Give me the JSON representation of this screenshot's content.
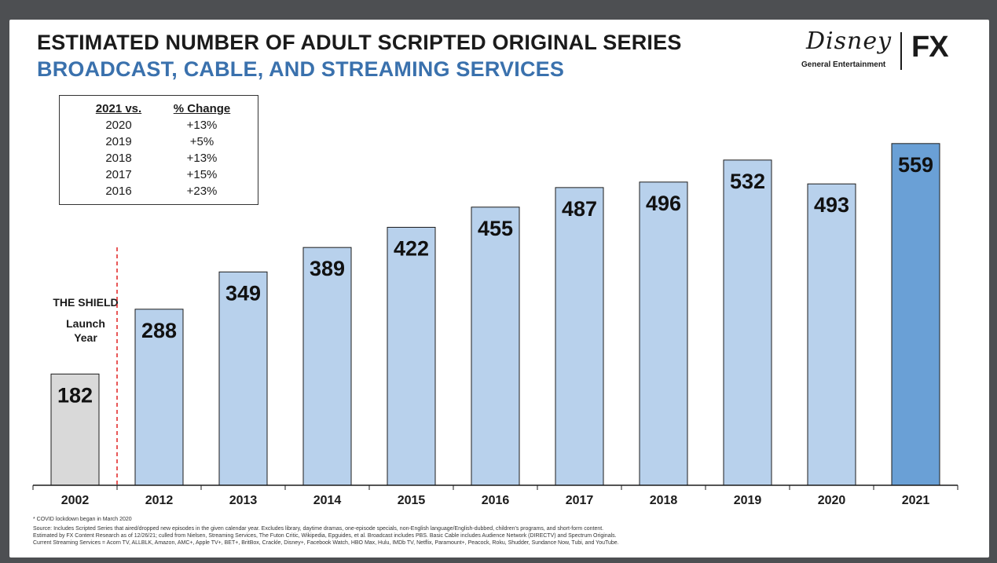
{
  "header": {
    "title": "ESTIMATED NUMBER OF ADULT SCRIPTED ORIGINAL SERIES",
    "subtitle": "BROADCAST, CABLE, AND STREAMING SERVICES"
  },
  "logos": {
    "disney": "Disney",
    "disney_sub": "General Entertainment",
    "fx": "FX"
  },
  "change_table": {
    "col1": "2021 vs.",
    "col2": "% Change",
    "rows": [
      {
        "year": "2020",
        "change": "+13%"
      },
      {
        "year": "2019",
        "change": "+5%"
      },
      {
        "year": "2018",
        "change": "+13%"
      },
      {
        "year": "2017",
        "change": "+15%"
      },
      {
        "year": "2016",
        "change": "+23%"
      }
    ]
  },
  "annotation": {
    "line1": "THE SHIELD",
    "line2": "Launch",
    "line3": "Year"
  },
  "chart_data": {
    "type": "bar",
    "title": "ESTIMATED NUMBER OF ADULT SCRIPTED ORIGINAL SERIES",
    "subtitle": "BROADCAST, CABLE, AND STREAMING SERVICES",
    "categories": [
      "2002",
      "2012",
      "2013",
      "2014",
      "2015",
      "2016",
      "2017",
      "2018",
      "2019",
      "2020",
      "2021"
    ],
    "values": [
      182,
      288,
      349,
      389,
      422,
      455,
      487,
      496,
      532,
      493,
      559
    ],
    "data_labels": [
      "182",
      "288",
      "349",
      "389",
      "422",
      "455",
      "487",
      "496",
      "532",
      "493",
      "559"
    ],
    "ylim": [
      0,
      600
    ],
    "grid": false,
    "colors": {
      "baseline_bar": "#d9d9d9",
      "bar": "#b8d1ec",
      "highlight_bar": "#6aa0d6",
      "divider": "#e02020"
    }
  },
  "footnotes": {
    "note1": "* COVID lockdown began in March 2020",
    "source1": "Source: Includes Scripted Series that aired/dropped new episodes in the given calendar year. Excludes library, daytime dramas, one-episode specials, non-English language/English-dubbed, children's programs, and short-form content.",
    "source2": "Estimated by FX Content Research as of 12/26/21; culled from Nielsen, Streaming Services, The Futon Critic, Wikipedia, Epguides, et al. Broadcast includes PBS. Basic Cable includes Audience Network (DIRECTV) and Spectrum Originals.",
    "source3": "Current Streaming Services = Acorn TV, ALLBLK, Amazon, AMC+, Apple TV+, BET+, BritBox, Crackle, Disney+, Facebook Watch, HBO Max, Hulu, IMDb TV, Netflix, Paramount+, Peacock, Roku, Shudder, Sundance Now, Tubi, and YouTube."
  }
}
